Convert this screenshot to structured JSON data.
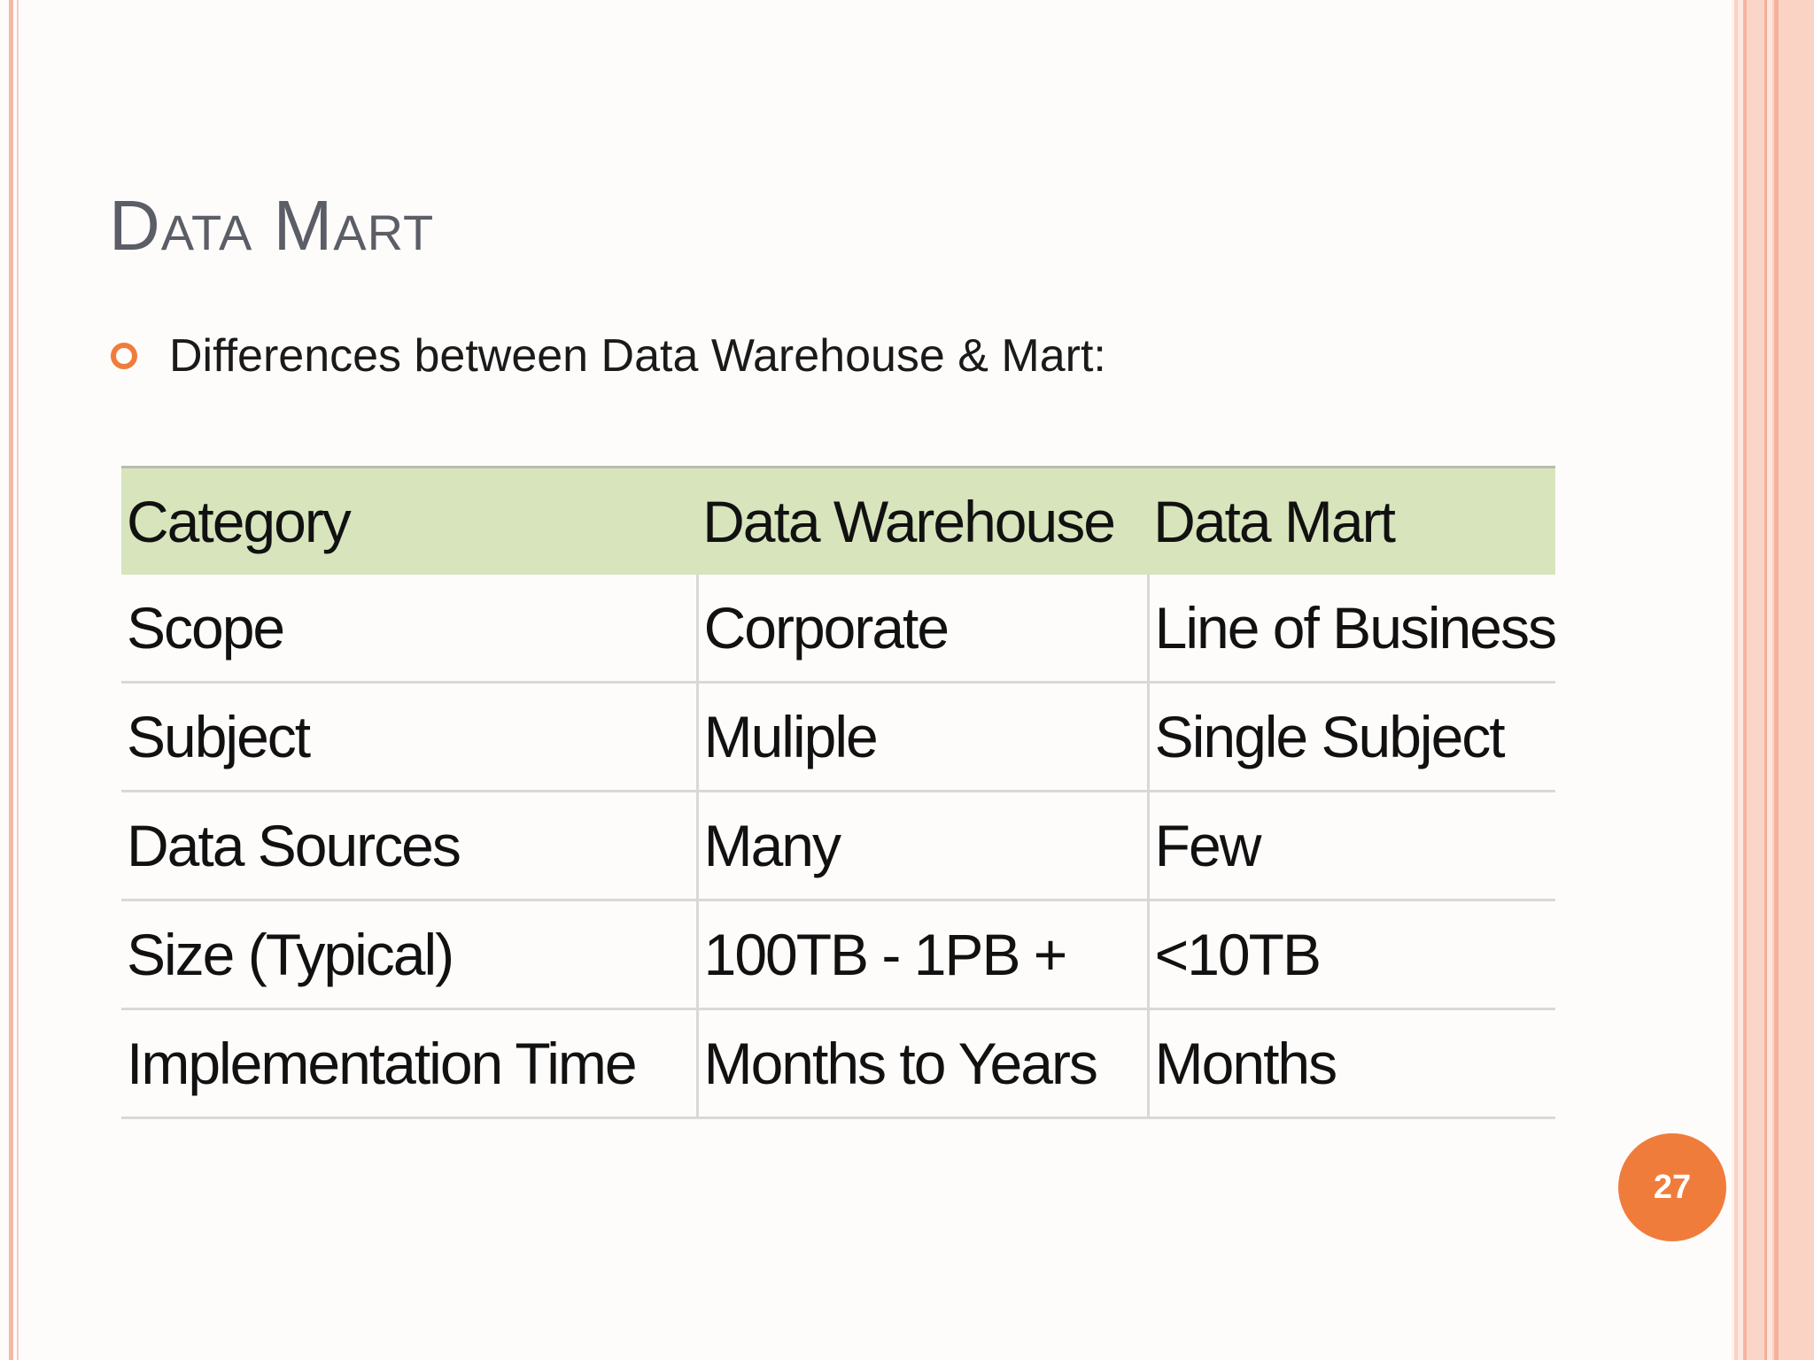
{
  "slide": {
    "title": "Data Mart",
    "bullet": "Differences between Data Warehouse & Mart:",
    "page_number": "27"
  },
  "table": {
    "headers": [
      "Category",
      "Data Warehouse",
      "Data Mart"
    ],
    "rows": [
      [
        "Scope",
        "Corporate",
        "Line of Business"
      ],
      [
        "Subject",
        "Muliple",
        "Single Subject"
      ],
      [
        "Data Sources",
        "Many",
        "Few"
      ],
      [
        "Size (Typical)",
        "100TB - 1PB +",
        "<10TB"
      ],
      [
        "Implementation Time",
        "Months to Years",
        "Months"
      ]
    ]
  },
  "colors": {
    "accent": "#f07c3c",
    "header_fill": "#d8e4bc",
    "title_text": "#5b5e66",
    "border_band": "#fbd1c2"
  },
  "icons": {
    "bullet": "hollow-circle-bullet-icon"
  }
}
